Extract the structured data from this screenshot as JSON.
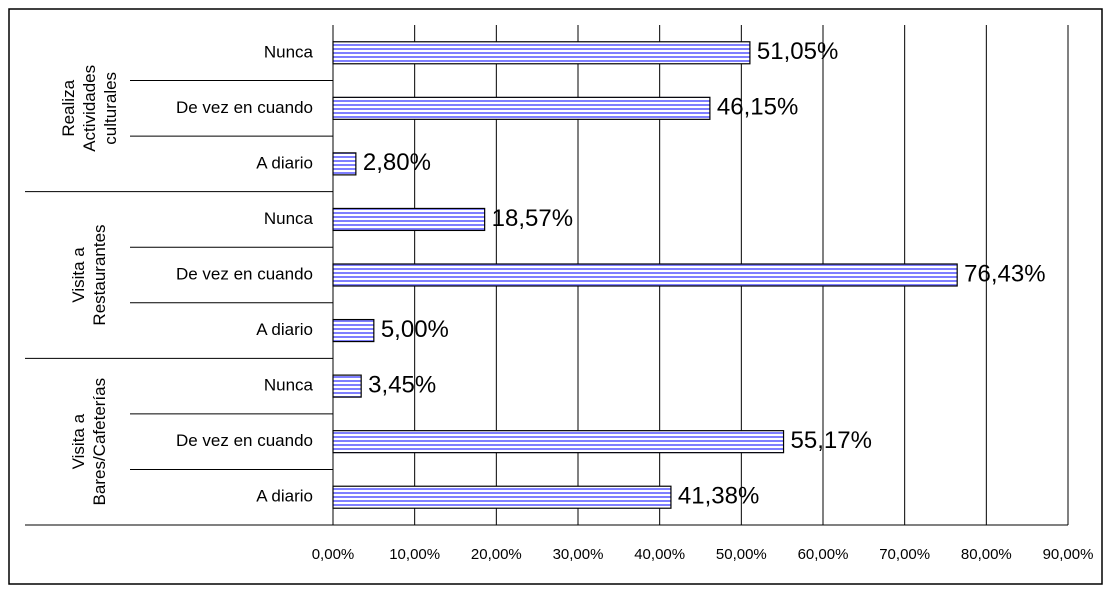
{
  "chart_data": {
    "type": "bar",
    "orientation": "horizontal",
    "color": "#7f7fff",
    "groups": [
      {
        "label": [
          "Realiza",
          "Actividades",
          "culturales"
        ],
        "categories": [
          "Nunca",
          "De vez en cuando",
          "A diario"
        ],
        "values": [
          51.05,
          46.15,
          2.8
        ],
        "value_labels": [
          "51,05%",
          "46,15%",
          "2,80%"
        ]
      },
      {
        "label": [
          "Visita a",
          "Restaurantes"
        ],
        "categories": [
          "Nunca",
          "De vez en cuando",
          "A diario"
        ],
        "values": [
          18.57,
          76.43,
          5.0
        ],
        "value_labels": [
          "18,57%",
          "76,43%",
          "5,00%"
        ]
      },
      {
        "label": [
          "Visita a",
          "Bares/Cafeterías"
        ],
        "categories": [
          "Nunca",
          "De vez en cuando",
          "A diario"
        ],
        "values": [
          3.45,
          55.17,
          41.38
        ],
        "value_labels": [
          "3,45%",
          "55,17%",
          "41,38%"
        ]
      }
    ],
    "xlim": [
      0,
      90
    ],
    "xticks": [
      {
        "value": 0,
        "label": "0,00%"
      },
      {
        "value": 10,
        "label": "10,00%"
      },
      {
        "value": 20,
        "label": "20,00%"
      },
      {
        "value": 30,
        "label": "30,00%"
      },
      {
        "value": 40,
        "label": "40,00%"
      },
      {
        "value": 50,
        "label": "50,00%"
      },
      {
        "value": 60,
        "label": "60,00%"
      },
      {
        "value": 70,
        "label": "70,00%"
      },
      {
        "value": 80,
        "label": "80,00%"
      },
      {
        "value": 90,
        "label": "90,00%"
      }
    ],
    "grid": true
  }
}
